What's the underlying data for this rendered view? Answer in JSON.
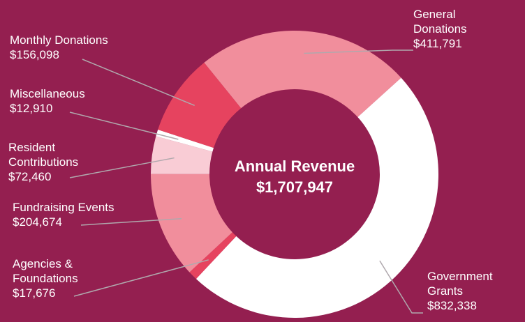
{
  "chart_data": {
    "type": "donut",
    "center_title": "Annual Revenue",
    "center_value": "$1,707,947",
    "categories": [
      "General Donations",
      "Government Grants",
      "Agencies & Foundations",
      "Fundraising Events",
      "Resident Contributions",
      "Miscellaneous",
      "Monthly Donations"
    ],
    "values": [
      411791,
      832338,
      17676,
      204674,
      72460,
      12910,
      156098
    ],
    "value_labels": [
      "$411,791",
      "$832,338",
      "$17,676",
      "$204,674",
      "$72,460",
      "$12,910",
      "$156,098"
    ],
    "colors": [
      "#f18e9c",
      "#ffffff",
      "#e6435f",
      "#f18e9c",
      "#f9ccd5",
      "#ffffff",
      "#e6435f"
    ]
  }
}
